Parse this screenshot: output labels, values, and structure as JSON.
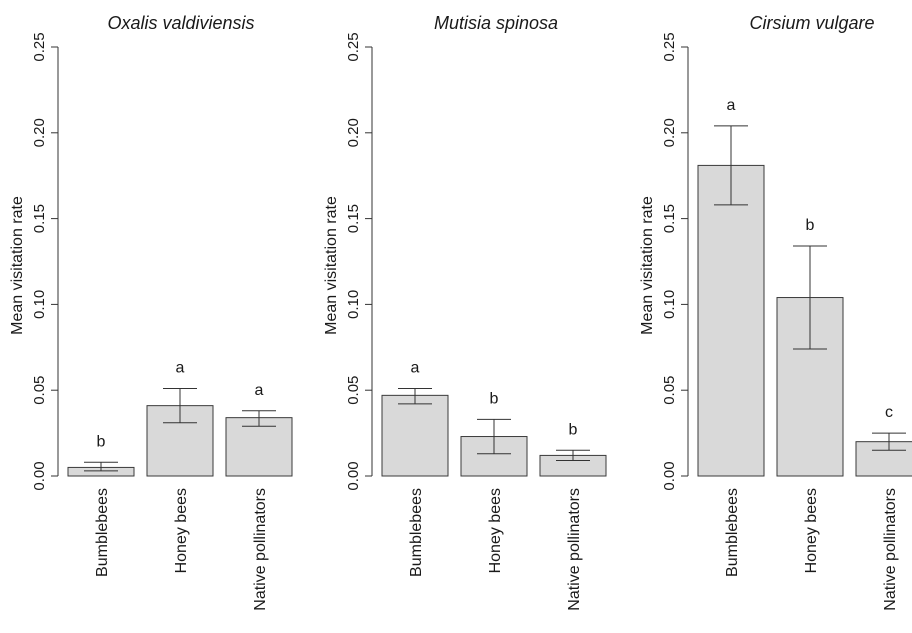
{
  "chart_data": [
    {
      "type": "bar",
      "title": "Oxalis valdiviensis",
      "ylabel": "Mean visitation rate",
      "xlabel": "",
      "ylim": [
        0,
        0.25
      ],
      "yticks": [
        "0.00",
        "0.05",
        "0.10",
        "0.15",
        "0.20",
        "0.25"
      ],
      "categories": [
        "Bumblebees",
        "Honey bees",
        "Native pollinators"
      ],
      "values": [
        0.005,
        0.041,
        0.034
      ],
      "error_low": [
        0.003,
        0.031,
        0.029
      ],
      "error_high": [
        0.008,
        0.051,
        0.038
      ],
      "letters": [
        "b",
        "a",
        "a"
      ],
      "grid": false,
      "bar_color": "#d9d9d9"
    },
    {
      "type": "bar",
      "title": "Mutisia spinosa",
      "ylabel": "Mean visitation rate",
      "xlabel": "",
      "ylim": [
        0,
        0.25
      ],
      "yticks": [
        "0.00",
        "0.05",
        "0.10",
        "0.15",
        "0.20",
        "0.25"
      ],
      "categories": [
        "Bumblebees",
        "Honey bees",
        "Native pollinators"
      ],
      "values": [
        0.047,
        0.023,
        0.012
      ],
      "error_low": [
        0.042,
        0.013,
        0.009
      ],
      "error_high": [
        0.051,
        0.033,
        0.015
      ],
      "letters": [
        "a",
        "b",
        "b"
      ],
      "grid": false,
      "bar_color": "#d9d9d9"
    },
    {
      "type": "bar",
      "title": "Cirsium vulgare",
      "ylabel": "Mean visitation rate",
      "xlabel": "",
      "ylim": [
        0,
        0.25
      ],
      "yticks": [
        "0.00",
        "0.05",
        "0.10",
        "0.15",
        "0.20",
        "0.25"
      ],
      "categories": [
        "Bumblebees",
        "Honey bees",
        "Native pollinators"
      ],
      "values": [
        0.181,
        0.104,
        0.02
      ],
      "error_low": [
        0.158,
        0.074,
        0.015
      ],
      "error_high": [
        0.204,
        0.134,
        0.025
      ],
      "letters": [
        "a",
        "b",
        "c"
      ],
      "grid": false,
      "bar_color": "#d9d9d9"
    }
  ]
}
